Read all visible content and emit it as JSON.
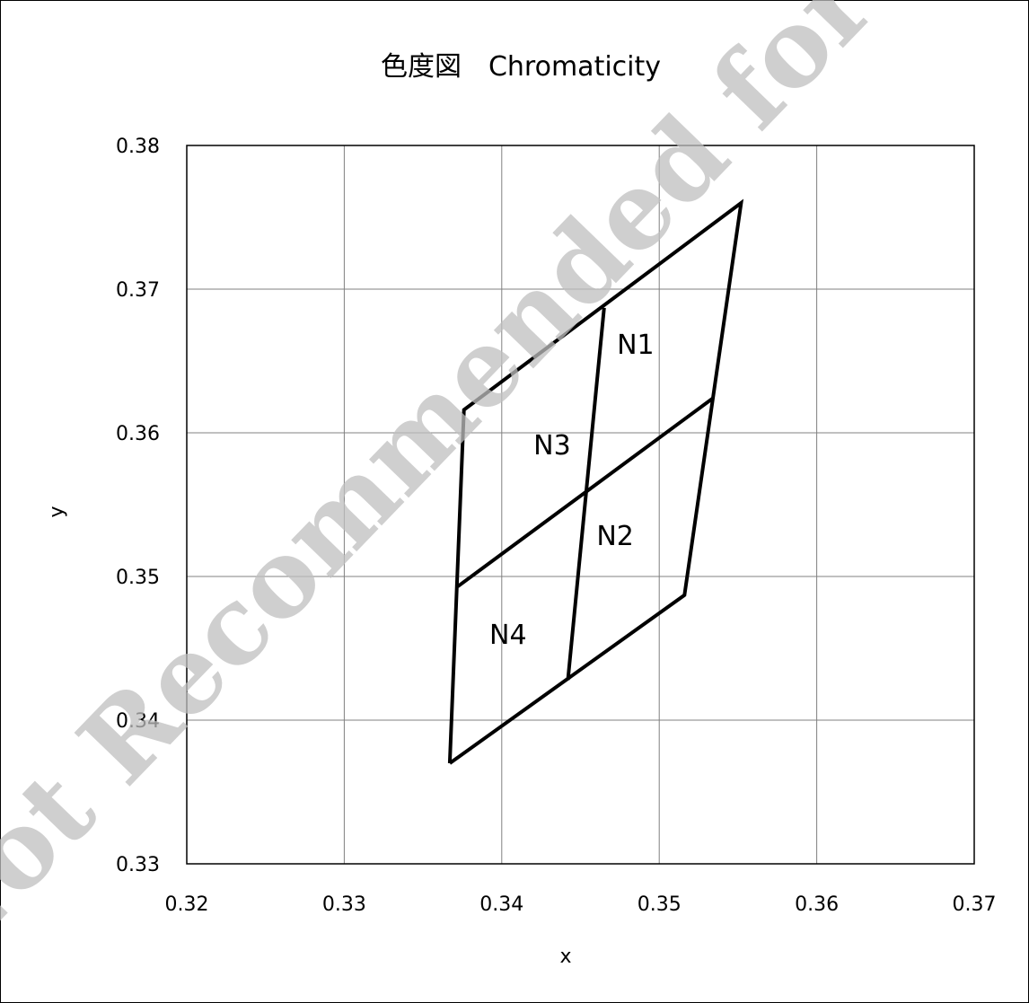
{
  "chart_data": {
    "type": "line",
    "title": "色度図　Chromaticity",
    "xlabel": "x",
    "ylabel": "y",
    "xlim": [
      0.32,
      0.37
    ],
    "ylim": [
      0.33,
      0.38
    ],
    "x_ticks": [
      "0.32",
      "0.33",
      "0.34",
      "0.35",
      "0.36",
      "0.37"
    ],
    "y_ticks": [
      "0.33",
      "0.34",
      "0.35",
      "0.36",
      "0.37",
      "0.38"
    ],
    "grid": true,
    "series": [
      {
        "points": [
          [
            0.3367,
            0.337
          ],
          [
            0.3376,
            0.3616
          ],
          [
            0.3552,
            0.376
          ],
          [
            0.3516,
            0.3487
          ],
          [
            0.3367,
            0.337
          ]
        ]
      },
      {
        "points": [
          [
            0.3442,
            0.3428
          ],
          [
            0.3465,
            0.3687
          ]
        ]
      },
      {
        "points": [
          [
            0.3372,
            0.3493
          ],
          [
            0.3534,
            0.3624
          ]
        ]
      }
    ],
    "annotations": [
      {
        "text": "N1",
        "x": 0.3485,
        "y": 0.3655
      },
      {
        "text": "N2",
        "x": 0.3472,
        "y": 0.3522
      },
      {
        "text": "N3",
        "x": 0.3432,
        "y": 0.3585
      },
      {
        "text": "N4",
        "x": 0.3404,
        "y": 0.3453
      }
    ]
  },
  "watermark": "Not Recommended for New"
}
